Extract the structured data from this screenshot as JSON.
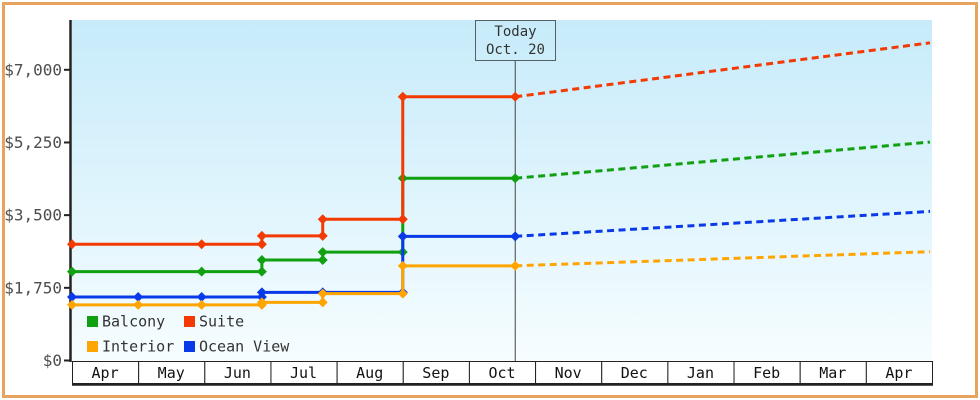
{
  "palette": {
    "frame": "#e8a45f",
    "plot_bg_top": "#c7ebfa",
    "plot_bg_bottom": "#f6fdff",
    "axis": "#222222",
    "tick_text": "#4d4d4d",
    "month_text": "#111111",
    "cell_bg": "#ffffff",
    "legend_text": "#333333",
    "today_text": "#333333",
    "today_line": "#444444"
  },
  "chart_data": {
    "type": "line",
    "subtype": "step-after with dashed forecast",
    "title": "",
    "xlabel": "",
    "ylabel": "",
    "x_axis": {
      "month_labels": [
        "Apr",
        "May",
        "Jun",
        "Jul",
        "Aug",
        "Sep",
        "Oct",
        "Nov",
        "Dec",
        "Jan",
        "Feb",
        "Mar",
        "Apr"
      ],
      "span_months": 13
    },
    "y_axis": {
      "tick_values": [
        0,
        1750,
        3500,
        5250,
        7000
      ],
      "tick_labels": [
        "$0",
        "$1,750",
        "$3,500",
        "$5,250",
        "$7,000"
      ],
      "max_value": 7000
    },
    "ylim": [
      0,
      8200
    ],
    "grid": false,
    "legend_position": "bottom-left-inside",
    "today": {
      "line1": "Today",
      "line2": "Oct. 20",
      "month_index": 6.7
    },
    "series": [
      {
        "name": "Balcony",
        "color": "#10a010",
        "steps": [
          [
            0,
            2140
          ],
          [
            2.87,
            2420
          ],
          [
            3.79,
            2610
          ],
          [
            5,
            4390
          ]
        ],
        "markers_extra": [
          [
            1.96,
            2140
          ]
        ],
        "projection_end_value": 5260
      },
      {
        "name": "Suite",
        "color": "#f23a02",
        "steps": [
          [
            0,
            2800
          ],
          [
            2.87,
            3000
          ],
          [
            3.79,
            3400
          ],
          [
            5,
            6350
          ]
        ],
        "markers_extra": [
          [
            1.96,
            2800
          ]
        ],
        "projection_end_value": 7650
      },
      {
        "name": "Ocean View",
        "color": "#0a3ae8",
        "steps": [
          [
            0,
            1530
          ],
          [
            2.87,
            1640
          ],
          [
            5,
            2990
          ]
        ],
        "markers_extra": [
          [
            1,
            1530
          ],
          [
            1.96,
            1530
          ],
          [
            3.79,
            1640
          ]
        ],
        "projection_end_value": 3590
      },
      {
        "name": "Interior",
        "color": "#ffa502",
        "steps": [
          [
            0,
            1340
          ],
          [
            2.87,
            1400
          ],
          [
            3.79,
            1610
          ],
          [
            5,
            2280
          ]
        ],
        "markers_extra": [
          [
            1,
            1340
          ],
          [
            1.96,
            1340
          ]
        ],
        "projection_end_value": 2620
      }
    ],
    "legend": {
      "items": [
        {
          "label": "Balcony",
          "color": "#10a010"
        },
        {
          "label": "Suite",
          "color": "#f23a02"
        },
        {
          "label": "Interior",
          "color": "#ffa502"
        },
        {
          "label": "Ocean View",
          "color": "#0a3ae8"
        }
      ]
    }
  }
}
